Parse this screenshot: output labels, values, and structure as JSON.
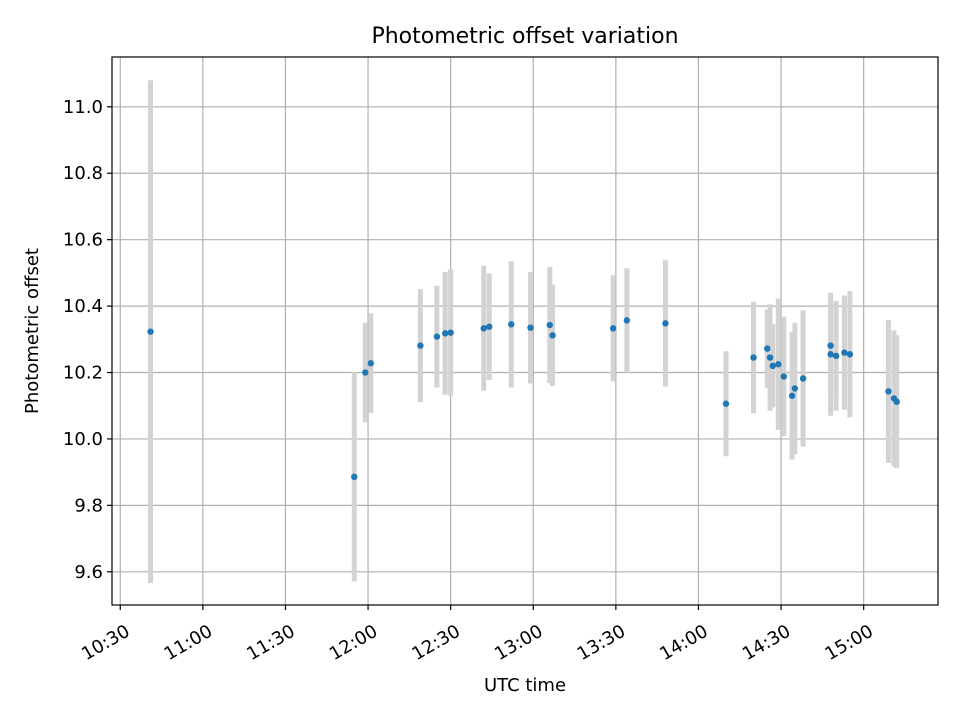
{
  "chart_data": {
    "type": "scatter",
    "title": "Photometric offset variation",
    "xlabel": "UTC time",
    "ylabel": "Photometric offset",
    "xlim": [
      "10:27",
      "15:27"
    ],
    "ylim": [
      9.5,
      11.15
    ],
    "x_ticks": [
      "10:30",
      "11:00",
      "11:30",
      "12:00",
      "12:30",
      "13:00",
      "13:30",
      "14:00",
      "14:30",
      "15:00"
    ],
    "y_ticks": [
      "9.6",
      "9.8",
      "10.0",
      "10.2",
      "10.4",
      "10.6",
      "10.8",
      "11.0"
    ],
    "grid": true,
    "legend": "none",
    "colors": {
      "point": "#1f77b4",
      "errorbar": "#d3d3d3",
      "grid": "#b0b0b0",
      "axes": "#000000"
    },
    "series": [
      {
        "points": [
          {
            "x": "10:41",
            "y": 10.323,
            "err": 0.757
          },
          {
            "x": "11:55",
            "y": 9.886,
            "err": 0.315
          },
          {
            "x": "11:59",
            "y": 10.2,
            "err": 0.15
          },
          {
            "x": "12:01",
            "y": 10.228,
            "err": 0.15
          },
          {
            "x": "12:19",
            "y": 10.281,
            "err": 0.17
          },
          {
            "x": "12:25",
            "y": 10.308,
            "err": 0.153
          },
          {
            "x": "12:28",
            "y": 10.318,
            "err": 0.185
          },
          {
            "x": "12:30",
            "y": 10.32,
            "err": 0.19
          },
          {
            "x": "12:42",
            "y": 10.333,
            "err": 0.188
          },
          {
            "x": "12:44",
            "y": 10.338,
            "err": 0.16
          },
          {
            "x": "12:52",
            "y": 10.345,
            "err": 0.19
          },
          {
            "x": "12:59",
            "y": 10.335,
            "err": 0.168
          },
          {
            "x": "13:06",
            "y": 10.343,
            "err": 0.175
          },
          {
            "x": "13:07",
            "y": 10.312,
            "err": 0.153
          },
          {
            "x": "13:29",
            "y": 10.333,
            "err": 0.16
          },
          {
            "x": "13:34",
            "y": 10.357,
            "err": 0.157
          },
          {
            "x": "13:48",
            "y": 10.348,
            "err": 0.19
          },
          {
            "x": "14:10",
            "y": 10.106,
            "err": 0.158
          },
          {
            "x": "14:20",
            "y": 10.245,
            "err": 0.168
          },
          {
            "x": "14:25",
            "y": 10.272,
            "err": 0.118
          },
          {
            "x": "14:26",
            "y": 10.245,
            "err": 0.16
          },
          {
            "x": "14:27",
            "y": 10.22,
            "err": 0.125
          },
          {
            "x": "14:29",
            "y": 10.225,
            "err": 0.198
          },
          {
            "x": "14:31",
            "y": 10.188,
            "err": 0.18
          },
          {
            "x": "14:34",
            "y": 10.13,
            "err": 0.192
          },
          {
            "x": "14:35",
            "y": 10.152,
            "err": 0.198
          },
          {
            "x": "14:38",
            "y": 10.182,
            "err": 0.205
          },
          {
            "x": "14:48",
            "y": 10.255,
            "err": 0.185
          },
          {
            "x": "14:48",
            "y": 10.281,
            "err": 0.142
          },
          {
            "x": "14:50",
            "y": 10.25,
            "err": 0.165
          },
          {
            "x": "14:53",
            "y": 10.26,
            "err": 0.172
          },
          {
            "x": "14:55",
            "y": 10.255,
            "err": 0.19
          },
          {
            "x": "15:09",
            "y": 10.143,
            "err": 0.215
          },
          {
            "x": "15:11",
            "y": 10.122,
            "err": 0.205
          },
          {
            "x": "15:12",
            "y": 10.112,
            "err": 0.2
          }
        ]
      }
    ]
  }
}
